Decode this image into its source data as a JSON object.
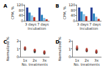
{
  "chart_data": [
    {
      "type": "bar",
      "title": "A",
      "x_label": "Incubation",
      "y_label": "CPM, %",
      "categories": [
        "3 days",
        "7 days"
      ],
      "series": [
        {
          "color": "#1f3a93",
          "values": [
            100,
            100
          ]
        },
        {
          "color": "#2e86c1",
          "values": [
            62,
            45
          ]
        },
        {
          "color": "#85c1e9",
          "values": [
            40,
            22
          ]
        },
        {
          "color": "#c0392b",
          "values": [
            28,
            12
          ]
        }
      ],
      "ylim": [
        0,
        120
      ],
      "yticks": [
        0,
        40,
        80,
        120
      ],
      "grid": false
    },
    {
      "type": "bar",
      "title": "B",
      "x_label": "Incubation",
      "y_label": "CPM, %",
      "categories": [
        "3 days",
        "7 days"
      ],
      "series": [
        {
          "color": "#1f3a93",
          "values": [
            100,
            100
          ]
        },
        {
          "color": "#2e86c1",
          "values": [
            70,
            55
          ]
        },
        {
          "color": "#85c1e9",
          "values": [
            50,
            30
          ]
        },
        {
          "color": "#c0392b",
          "values": [
            35,
            15
          ]
        }
      ],
      "ylim": [
        0,
        120
      ],
      "yticks": [
        0,
        40,
        80,
        120
      ],
      "grid": false
    },
    {
      "type": "scatter",
      "title": "C",
      "x_label": "No. treatments",
      "y_label": "Normalized %",
      "categories": [
        "1x",
        "2x",
        "3x"
      ],
      "series": [
        {
          "color": "#1a1a1a",
          "x": [
            "1x",
            "1x",
            "1x",
            "2x",
            "2x",
            "2x",
            "3x",
            "3x",
            "3x"
          ],
          "values": [
            1.0,
            0.9,
            1.1,
            0.7,
            0.6,
            0.8,
            0.5,
            0.4,
            0.6
          ]
        },
        {
          "color": "#c0392b",
          "x": [
            "1x",
            "1x",
            "2x",
            "2x",
            "3x",
            "3x"
          ],
          "values": [
            1.2,
            1.0,
            0.9,
            0.8,
            0.7,
            0.5
          ]
        }
      ],
      "ylim": [
        0,
        2
      ],
      "yticks": [
        0,
        1,
        2
      ],
      "grid": false
    },
    {
      "type": "scatter",
      "title": "D",
      "x_label": "No. treatments",
      "y_label": "Normalized %",
      "categories": [
        "1x",
        "2x",
        "3x"
      ],
      "series": [
        {
          "color": "#1a1a1a",
          "x": [
            "1x",
            "1x",
            "1x",
            "2x",
            "2x",
            "2x",
            "3x",
            "3x",
            "3x"
          ],
          "values": [
            1.1,
            1.0,
            0.9,
            0.8,
            0.7,
            0.9,
            0.6,
            0.5,
            0.7
          ]
        },
        {
          "color": "#c0392b",
          "x": [
            "1x",
            "1x",
            "2x",
            "2x",
            "3x",
            "3x"
          ],
          "values": [
            1.3,
            1.1,
            1.0,
            0.8,
            0.8,
            0.6
          ]
        }
      ],
      "ylim": [
        0,
        2
      ],
      "yticks": [
        0,
        1,
        2
      ],
      "grid": false
    }
  ]
}
